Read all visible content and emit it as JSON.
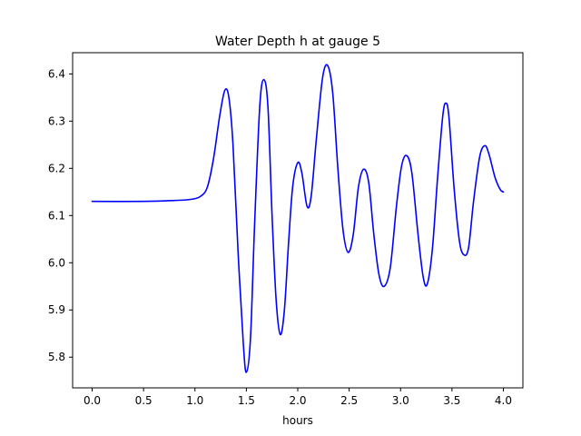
{
  "chart_data": {
    "type": "line",
    "title": "Water Depth h at gauge 5",
    "xlabel": "hours",
    "ylabel": "",
    "xlim": [
      -0.19,
      4.19
    ],
    "ylim": [
      5.735,
      6.445
    ],
    "x_ticks": [
      0.0,
      0.5,
      1.0,
      1.5,
      2.0,
      2.5,
      3.0,
      3.5,
      4.0
    ],
    "x_tick_labels": [
      "0.0",
      "0.5",
      "1.0",
      "1.5",
      "2.0",
      "2.5",
      "3.0",
      "3.5",
      "4.0"
    ],
    "y_ticks": [
      5.8,
      5.9,
      6.0,
      6.1,
      6.2,
      6.3,
      6.4
    ],
    "y_tick_labels": [
      "5.8",
      "5.9",
      "6.0",
      "6.1",
      "6.2",
      "6.3",
      "6.4"
    ],
    "grid": false,
    "series": [
      {
        "name": "",
        "color": "#0000ff",
        "points": [
          [
            0.0,
            6.13
          ],
          [
            0.5,
            6.13
          ],
          [
            0.8,
            6.132
          ],
          [
            0.95,
            6.134
          ],
          [
            1.05,
            6.14
          ],
          [
            1.12,
            6.16
          ],
          [
            1.18,
            6.22
          ],
          [
            1.24,
            6.31
          ],
          [
            1.29,
            6.365
          ],
          [
            1.33,
            6.35
          ],
          [
            1.37,
            6.25
          ],
          [
            1.42,
            6.02
          ],
          [
            1.47,
            5.83
          ],
          [
            1.5,
            5.768
          ],
          [
            1.54,
            5.84
          ],
          [
            1.58,
            6.08
          ],
          [
            1.63,
            6.33
          ],
          [
            1.67,
            6.388
          ],
          [
            1.71,
            6.33
          ],
          [
            1.75,
            6.1
          ],
          [
            1.79,
            5.92
          ],
          [
            1.83,
            5.848
          ],
          [
            1.87,
            5.9
          ],
          [
            1.91,
            6.04
          ],
          [
            1.95,
            6.16
          ],
          [
            2.0,
            6.212
          ],
          [
            2.04,
            6.19
          ],
          [
            2.09,
            6.12
          ],
          [
            2.13,
            6.14
          ],
          [
            2.18,
            6.26
          ],
          [
            2.24,
            6.39
          ],
          [
            2.29,
            6.418
          ],
          [
            2.34,
            6.36
          ],
          [
            2.39,
            6.2
          ],
          [
            2.44,
            6.07
          ],
          [
            2.49,
            6.022
          ],
          [
            2.54,
            6.06
          ],
          [
            2.59,
            6.16
          ],
          [
            2.64,
            6.198
          ],
          [
            2.69,
            6.17
          ],
          [
            2.74,
            6.06
          ],
          [
            2.79,
            5.975
          ],
          [
            2.84,
            5.95
          ],
          [
            2.9,
            5.99
          ],
          [
            2.96,
            6.12
          ],
          [
            3.01,
            6.205
          ],
          [
            3.06,
            6.227
          ],
          [
            3.11,
            6.19
          ],
          [
            3.17,
            6.06
          ],
          [
            3.22,
            5.97
          ],
          [
            3.26,
            5.955
          ],
          [
            3.31,
            6.03
          ],
          [
            3.36,
            6.18
          ],
          [
            3.41,
            6.31
          ],
          [
            3.44,
            6.338
          ],
          [
            3.47,
            6.31
          ],
          [
            3.52,
            6.16
          ],
          [
            3.57,
            6.05
          ],
          [
            3.61,
            6.018
          ],
          [
            3.66,
            6.03
          ],
          [
            3.71,
            6.13
          ],
          [
            3.77,
            6.225
          ],
          [
            3.82,
            6.248
          ],
          [
            3.86,
            6.23
          ],
          [
            3.92,
            6.18
          ],
          [
            3.97,
            6.155
          ],
          [
            4.0,
            6.15
          ]
        ]
      }
    ]
  }
}
